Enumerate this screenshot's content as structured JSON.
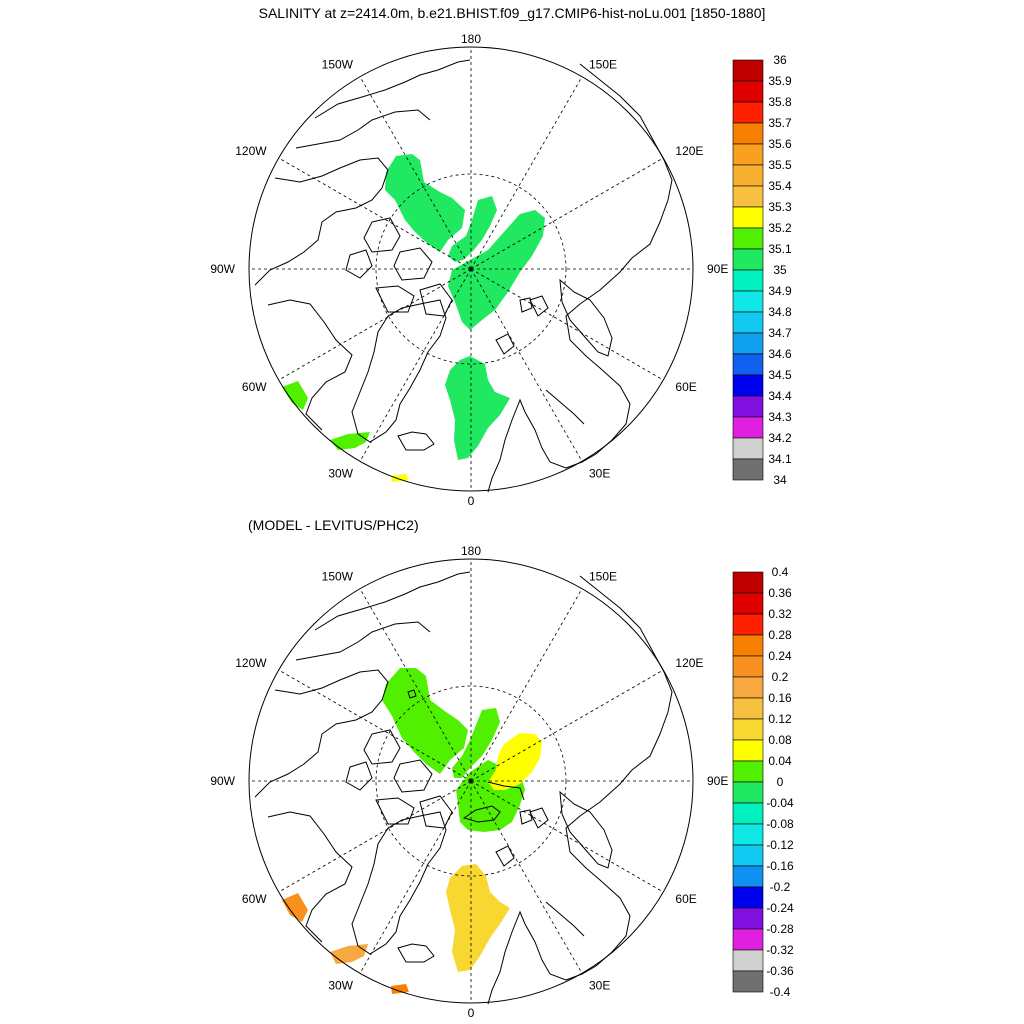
{
  "title": "SALINITY at z=2414.0m, b.e21.BHIST.f09_g17.CMIP6-hist-noLu.001 [1850-1880]",
  "panels": [
    {
      "subtitle": "",
      "lon_labels": [
        "180",
        "150E",
        "120E",
        "90E",
        "60E",
        "30E",
        "0",
        "30W",
        "60W",
        "90W",
        "120W",
        "150W"
      ],
      "colorbar": {
        "labels": [
          "36",
          "35.9",
          "35.8",
          "35.7",
          "35.6",
          "35.5",
          "35.4",
          "35.3",
          "35.2",
          "35.1",
          "35",
          "34.9",
          "34.8",
          "34.7",
          "34.6",
          "34.5",
          "34.4",
          "34.3",
          "34.2",
          "34.1",
          "34"
        ],
        "colors": [
          "#c00000",
          "#e00000",
          "#ff2000",
          "#f88000",
          "#f8a020",
          "#f8b030",
          "#f8c040",
          "#ffff00",
          "#50f000",
          "#20e860",
          "#00f0c0",
          "#10e8e8",
          "#10c8f0",
          "#10a0f0",
          "#1060f0",
          "#0000f0",
          "#8010e0",
          "#e020e0",
          "#d0d0d0",
          "#707070"
        ]
      },
      "regions": [
        {
          "name": "beaufort-region",
          "color": "#20e860"
        },
        {
          "name": "lomonosov-region",
          "color": "#20e860"
        },
        {
          "name": "eurasian-basin-region",
          "color": "#20e860"
        },
        {
          "name": "greenland-sea-region",
          "color": "#20e860"
        },
        {
          "name": "labrador-region",
          "color": "#50f000"
        },
        {
          "name": "irminger-region",
          "color": "#50f000"
        },
        {
          "name": "norwegian-south-region",
          "color": "#ffff00"
        }
      ]
    },
    {
      "subtitle": "(MODEL - LEVITUS/PHC2)",
      "lon_labels": [
        "180",
        "150E",
        "120E",
        "90E",
        "60E",
        "30E",
        "0",
        "30W",
        "60W",
        "90W",
        "120W",
        "150W"
      ],
      "colorbar": {
        "labels": [
          "0.4",
          "0.36",
          "0.32",
          "0.28",
          "0.24",
          "0.2",
          "0.16",
          "0.12",
          "0.08",
          "0.04",
          "0",
          "-0.04",
          "-0.08",
          "-0.12",
          "-0.16",
          "-0.2",
          "-0.24",
          "-0.28",
          "-0.32",
          "-0.36",
          "-0.4"
        ],
        "colors": [
          "#c00000",
          "#e00000",
          "#ff2000",
          "#f88000",
          "#f89020",
          "#f8a840",
          "#f8c040",
          "#f8d830",
          "#ffff00",
          "#50f000",
          "#20e860",
          "#00f0c0",
          "#10e8e8",
          "#10c8f0",
          "#1090f0",
          "#0000f0",
          "#8010e0",
          "#e020e0",
          "#d0d0d0",
          "#707070"
        ]
      },
      "regions": [
        {
          "name": "beaufort-region",
          "color": "#50f000"
        },
        {
          "name": "lomonosov-region",
          "color": "#50f000"
        },
        {
          "name": "eurasian-basin-region",
          "color": "#50f000"
        },
        {
          "name": "eurasian-basin-yellow-region",
          "color": "#ffff00"
        },
        {
          "name": "greenland-sea-region",
          "color": "#f8d830"
        },
        {
          "name": "labrador-region",
          "color": "#f89020"
        },
        {
          "name": "irminger-region",
          "color": "#f8a840"
        },
        {
          "name": "norwegian-south-region",
          "color": "#f88000"
        }
      ]
    }
  ]
}
